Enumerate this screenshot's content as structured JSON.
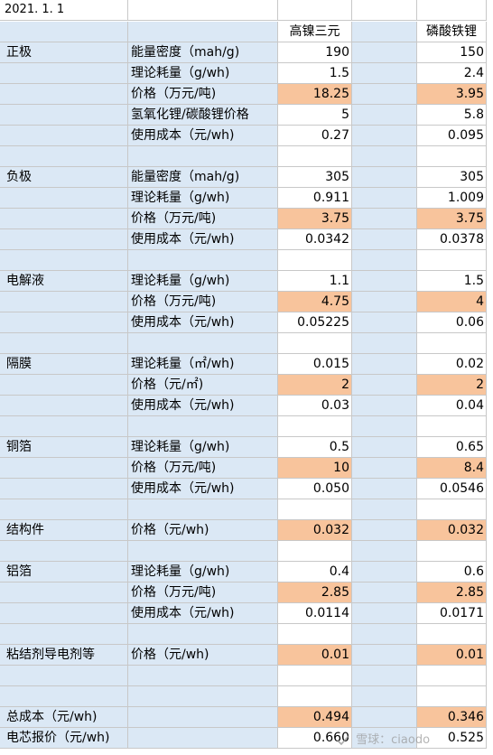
{
  "sheet": {
    "date": "2021. 1. 1",
    "col_headers": [
      "高镍三元",
      "磷酸铁锂"
    ],
    "rows": [
      {
        "kind": "header"
      },
      {
        "group": "正极",
        "item": "能量密度（mah/g)",
        "v1": "190",
        "v2": "150",
        "hl": false
      },
      {
        "group": "",
        "item": "理论耗量（g/wh)",
        "v1": "1.5",
        "v2": "2.4",
        "hl": false
      },
      {
        "group": "",
        "item": "价格（万元/吨)",
        "v1": "18.25",
        "v2": "3.95",
        "hl": true
      },
      {
        "group": "",
        "item": "氢氧化锂/碳酸锂价格",
        "v1": "5",
        "v2": "5.8",
        "hl": false
      },
      {
        "group": "",
        "item": "使用成本（元/wh)",
        "v1": "0.27",
        "v2": "0.095",
        "hl": false
      },
      {
        "kind": "blank"
      },
      {
        "group": "负极",
        "item": "能量密度（mah/g)",
        "v1": "305",
        "v2": "305",
        "hl": false
      },
      {
        "group": "",
        "item": "理论耗量（g/wh)",
        "v1": "0.911",
        "v2": "1.009",
        "hl": false
      },
      {
        "group": "",
        "item": "价格（万元/吨)",
        "v1": "3.75",
        "v2": "3.75",
        "hl": true
      },
      {
        "group": "",
        "item": "使用成本（元/wh)",
        "v1": "0.0342",
        "v2": "0.0378",
        "hl": false
      },
      {
        "kind": "blank"
      },
      {
        "group": "电解液",
        "item": "理论耗量（g/wh)",
        "v1": "1.1",
        "v2": "1.5",
        "hl": false
      },
      {
        "group": "",
        "item": "价格（万元/吨)",
        "v1": "4.75",
        "v2": "4",
        "hl": true
      },
      {
        "group": "",
        "item": "使用成本（元/wh)",
        "v1": "0.05225",
        "v2": "0.06",
        "hl": false
      },
      {
        "kind": "blank"
      },
      {
        "group": "隔膜",
        "item": "理论耗量（㎡/wh)",
        "v1": "0.015",
        "v2": "0.02",
        "hl": false
      },
      {
        "group": "",
        "item": "价格（元/㎡)",
        "v1": "2",
        "v2": "2",
        "hl": true
      },
      {
        "group": "",
        "item": "使用成本（元/wh)",
        "v1": "0.03",
        "v2": "0.04",
        "hl": false
      },
      {
        "kind": "blank"
      },
      {
        "group": "铜箔",
        "item": "理论耗量（g/wh)",
        "v1": "0.5",
        "v2": "0.65",
        "hl": false
      },
      {
        "group": "",
        "item": "价格（万元/吨)",
        "v1": "10",
        "v2": "8.4",
        "hl": true
      },
      {
        "group": "",
        "item": "使用成本（元/wh)",
        "v1": "0.050",
        "v2": "0.0546",
        "hl": false
      },
      {
        "kind": "blank"
      },
      {
        "group": "结构件",
        "item": "价格（元/wh)",
        "v1": "0.032",
        "v2": "0.032",
        "hl": true
      },
      {
        "kind": "blank"
      },
      {
        "group": "铝箔",
        "item": "理论耗量（g/wh)",
        "v1": "0.4",
        "v2": "0.6",
        "hl": false
      },
      {
        "group": "",
        "item": "价格（万元/吨)",
        "v1": "2.85",
        "v2": "2.85",
        "hl": true
      },
      {
        "group": "",
        "item": "使用成本（元/wh)",
        "v1": "0.0114",
        "v2": "0.0171",
        "hl": false
      },
      {
        "kind": "blank"
      },
      {
        "group": "粘结剂导电剂等",
        "item": "价格（元/wh)",
        "v1": "0.01",
        "v2": "0.01",
        "hl": true
      },
      {
        "kind": "blank"
      },
      {
        "kind": "blank"
      },
      {
        "group": "总成本（元/wh)",
        "item": "",
        "v1": "0.494",
        "v2": "0.346",
        "hl": true
      },
      {
        "group": "电芯报价（元/wh)",
        "item": "",
        "v1": "0.660",
        "v2": "0.525",
        "hl": false
      }
    ]
  },
  "watermark": {
    "text": "雪球：ciaodo",
    "icon": "snowball-logo-icon"
  }
}
